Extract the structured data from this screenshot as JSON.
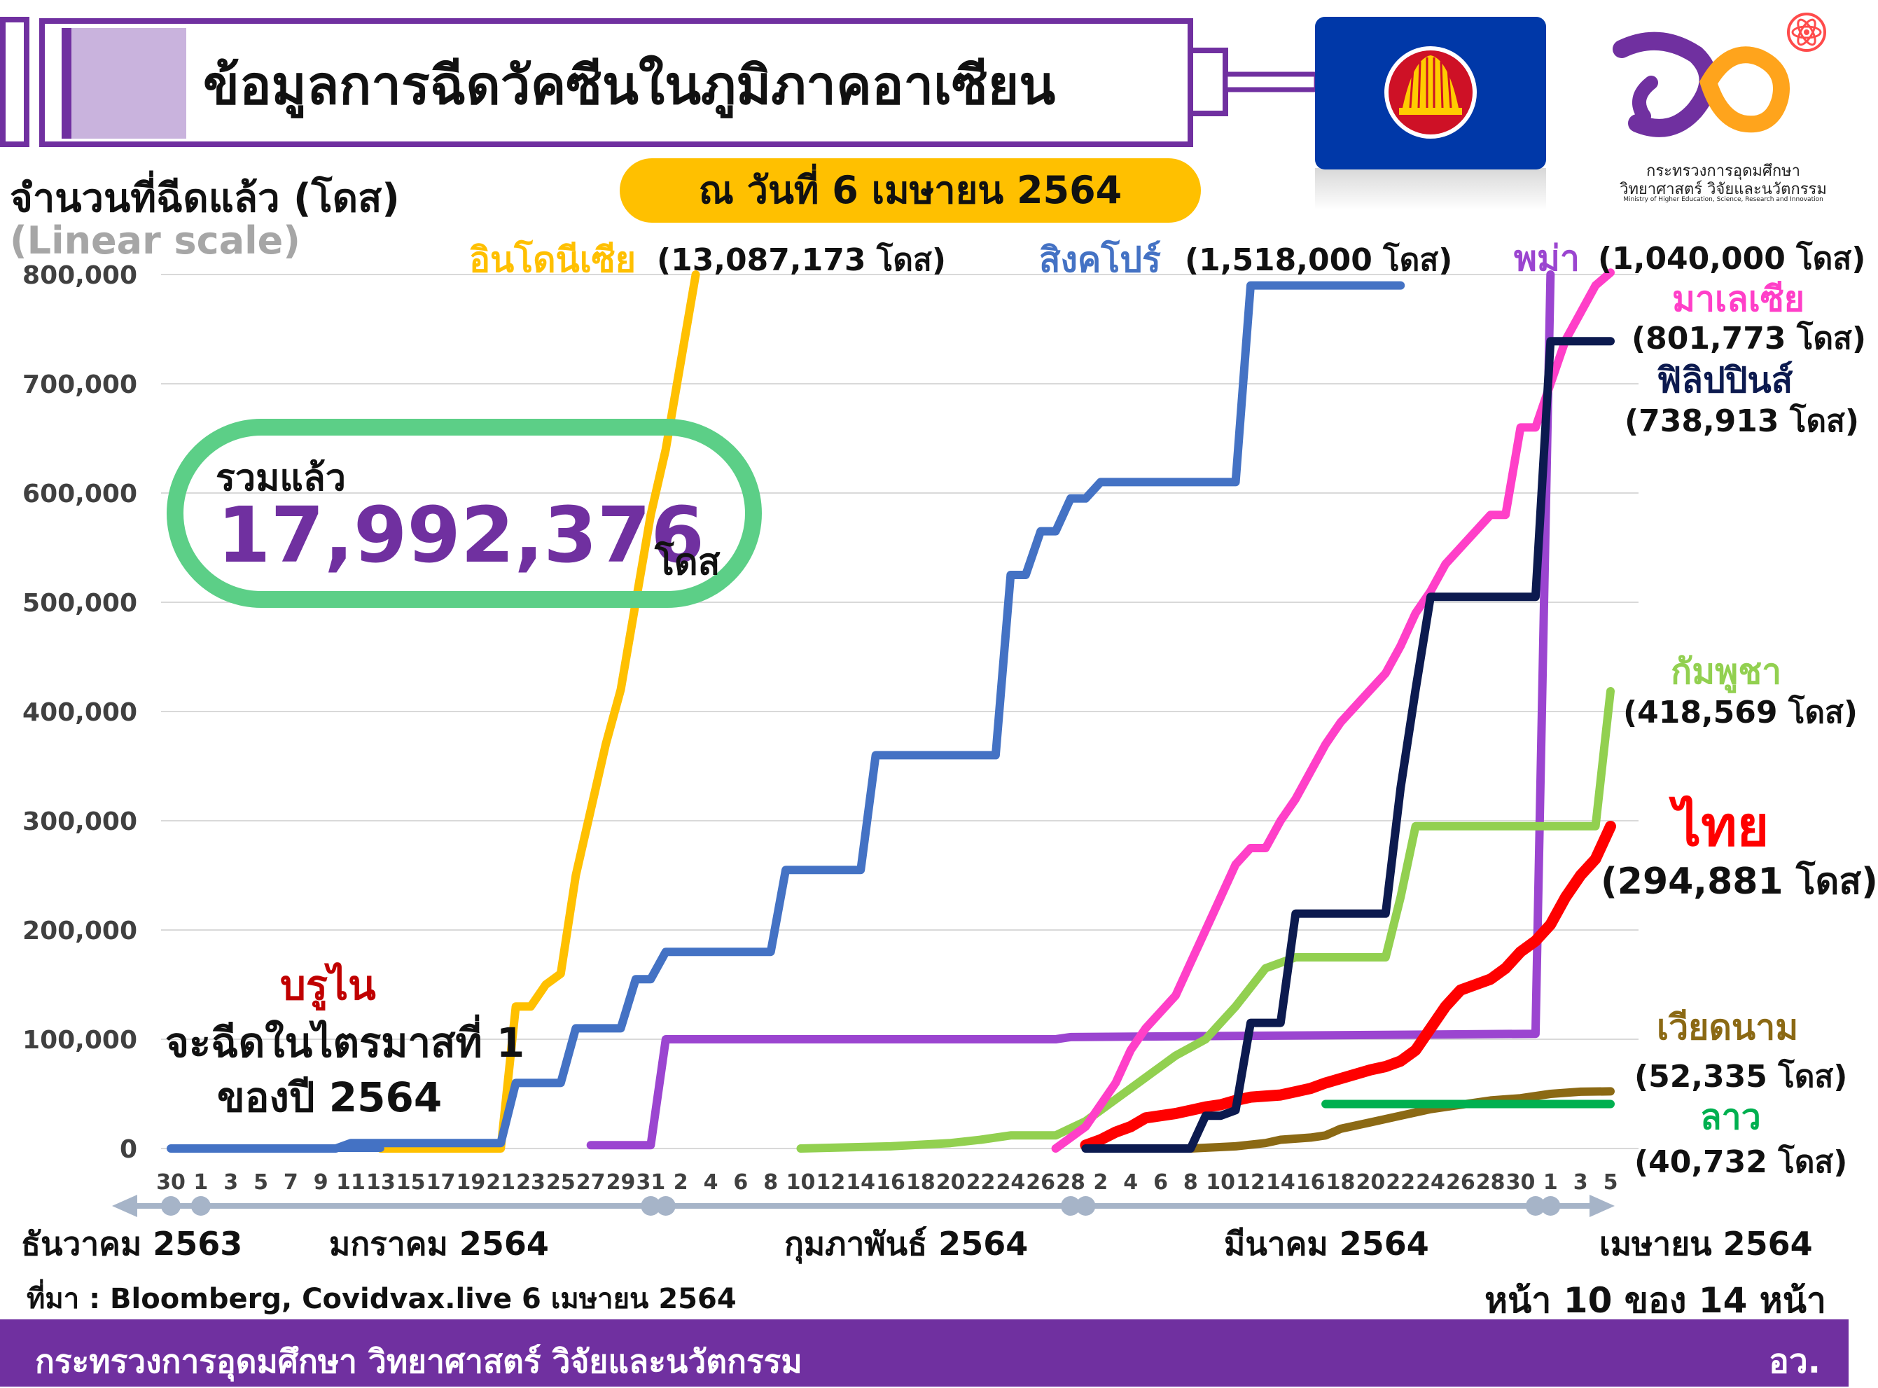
{
  "header": {
    "title": "ข้อมูลการฉีดวัคซีนในภูมิภาคอาเซียน",
    "date": "ณ วันที่ 6 เมษายน 2564"
  },
  "logo": {
    "caption_line1": "กระทรวงการอุดมศึกษา",
    "caption_line2": "วิทยาศาสตร์ วิจัยและนวัตกรรม",
    "caption_line3": "Ministry of Higher Education, Science, Research and Innovation"
  },
  "total": {
    "label": "รวมแล้ว",
    "value": "17,992,376",
    "unit": "โดส"
  },
  "brunei": {
    "name": "บรูไน",
    "note_line1": "จะฉีดในไตรมาสที่ 1",
    "note_line2": "ของปี 2564"
  },
  "labels": {
    "indonesia_name": "อินโดนีเซีย",
    "indonesia_doses": "(13,087,173 โดส)",
    "singapore_name": "สิงคโปร์",
    "singapore_doses": "(1,518,000 โดส)",
    "myanmar_name": "พม่า",
    "myanmar_doses": "(1,040,000 โดส)",
    "malaysia_name": "มาเลเซีย",
    "malaysia_doses": "(801,773 โดส)",
    "philippines_name": "ฟิลิปปินส์",
    "philippines_doses": "(738,913 โดส)",
    "cambodia_name": "กัมพูชา",
    "cambodia_doses": "(418,569 โดส)",
    "thailand_name": "ไทย",
    "thailand_doses": "(294,881 โดส)",
    "vietnam_name": "เวียดนาม",
    "vietnam_doses": "(52,335 โดส)",
    "laos_name": "ลาว",
    "laos_doses": "(40,732 โดส)"
  },
  "footer": {
    "source": "ที่มา : Bloomberg, Covidvax.live 6 เมษายน 2564",
    "page": "หน้า 10 ของ 14 หน้า",
    "ministry": "กระทรวงการอุดมศึกษา วิทยาศาสตร์ วิจัยและนวัตกรรม",
    "abbr": "อว."
  },
  "colors": {
    "indonesia": "#ffc000",
    "singapore": "#4472c4",
    "myanmar": "#9b45d0",
    "malaysia": "#ff3fc8",
    "philippines": "#0c1a4f",
    "cambodia": "#92d050",
    "thailand": "#ff0000",
    "vietnam": "#8b6914",
    "laos": "#00b050",
    "accent": "#7030a0"
  },
  "chart_data": {
    "type": "line",
    "ylabel": "จำนวนที่ฉีดแล้ว (โดส)",
    "yscale_note": "(Linear scale)",
    "ylim": [
      0,
      800000
    ],
    "yticks": [
      0,
      100000,
      200000,
      300000,
      400000,
      500000,
      600000,
      700000,
      800000
    ],
    "ytick_labels": [
      "0",
      "100,000",
      "200,000",
      "300,000",
      "400,000",
      "500,000",
      "600,000",
      "700,000",
      "800,000"
    ],
    "grid": true,
    "x_ticks": [
      {
        "date": "2020-12-30",
        "label": "30"
      },
      {
        "date": "2021-01-01",
        "label": "1"
      },
      {
        "date": "2021-01-03",
        "label": "3"
      },
      {
        "date": "2021-01-05",
        "label": "5"
      },
      {
        "date": "2021-01-07",
        "label": "7"
      },
      {
        "date": "2021-01-09",
        "label": "9"
      },
      {
        "date": "2021-01-11",
        "label": "11"
      },
      {
        "date": "2021-01-13",
        "label": "13"
      },
      {
        "date": "2021-01-15",
        "label": "15"
      },
      {
        "date": "2021-01-17",
        "label": "17"
      },
      {
        "date": "2021-01-19",
        "label": "19"
      },
      {
        "date": "2021-01-21",
        "label": "21"
      },
      {
        "date": "2021-01-23",
        "label": "23"
      },
      {
        "date": "2021-01-25",
        "label": "25"
      },
      {
        "date": "2021-01-27",
        "label": "27"
      },
      {
        "date": "2021-01-29",
        "label": "29"
      },
      {
        "date": "2021-01-31",
        "label": "31"
      },
      {
        "date": "2021-02-02",
        "label": "2"
      },
      {
        "date": "2021-02-04",
        "label": "4"
      },
      {
        "date": "2021-02-06",
        "label": "6"
      },
      {
        "date": "2021-02-08",
        "label": "8"
      },
      {
        "date": "2021-02-10",
        "label": "10"
      },
      {
        "date": "2021-02-12",
        "label": "12"
      },
      {
        "date": "2021-02-14",
        "label": "14"
      },
      {
        "date": "2021-02-16",
        "label": "16"
      },
      {
        "date": "2021-02-18",
        "label": "18"
      },
      {
        "date": "2021-02-20",
        "label": "20"
      },
      {
        "date": "2021-02-22",
        "label": "22"
      },
      {
        "date": "2021-02-24",
        "label": "24"
      },
      {
        "date": "2021-02-26",
        "label": "26"
      },
      {
        "date": "2021-02-28",
        "label": "28"
      },
      {
        "date": "2021-03-02",
        "label": "2"
      },
      {
        "date": "2021-03-04",
        "label": "4"
      },
      {
        "date": "2021-03-06",
        "label": "6"
      },
      {
        "date": "2021-03-08",
        "label": "8"
      },
      {
        "date": "2021-03-10",
        "label": "10"
      },
      {
        "date": "2021-03-12",
        "label": "12"
      },
      {
        "date": "2021-03-14",
        "label": "14"
      },
      {
        "date": "2021-03-16",
        "label": "16"
      },
      {
        "date": "2021-03-18",
        "label": "18"
      },
      {
        "date": "2021-03-20",
        "label": "20"
      },
      {
        "date": "2021-03-22",
        "label": "22"
      },
      {
        "date": "2021-03-24",
        "label": "24"
      },
      {
        "date": "2021-03-26",
        "label": "26"
      },
      {
        "date": "2021-03-28",
        "label": "28"
      },
      {
        "date": "2021-03-30",
        "label": "30"
      },
      {
        "date": "2021-04-01",
        "label": "1"
      },
      {
        "date": "2021-04-03",
        "label": "3"
      },
      {
        "date": "2021-04-05",
        "label": "5"
      }
    ],
    "months": [
      {
        "label": "ธันวาคม 2563"
      },
      {
        "label": "มกราคม 2564"
      },
      {
        "label": "กุมภาพันธ์ 2564"
      },
      {
        "label": "มีนาคม 2564"
      },
      {
        "label": "เมษายน 2564"
      }
    ],
    "series": [
      {
        "key": "indonesia",
        "name": "อินโดนีเซีย",
        "x": [
          "2021-01-13",
          "2021-01-21",
          "2021-01-22",
          "2021-01-23",
          "2021-01-24",
          "2021-01-25",
          "2021-01-26",
          "2021-01-27",
          "2021-01-28",
          "2021-01-29",
          "2021-01-30",
          "2021-01-31",
          "2021-02-01",
          "2021-02-02",
          "2021-02-03"
        ],
        "y": [
          0,
          0,
          130000,
          130000,
          150000,
          160000,
          250000,
          310000,
          370000,
          420000,
          500000,
          580000,
          640000,
          720000,
          800000
        ]
      },
      {
        "key": "singapore",
        "name": "สิงคโปร์",
        "x": [
          "2020-12-30",
          "2021-01-10",
          "2021-01-11",
          "2021-01-21",
          "2021-01-22",
          "2021-01-25",
          "2021-01-26",
          "2021-01-29",
          "2021-01-30",
          "2021-01-31",
          "2021-02-01",
          "2021-02-08",
          "2021-02-09",
          "2021-02-14",
          "2021-02-15",
          "2021-02-23",
          "2021-02-24",
          "2021-02-25",
          "2021-02-26",
          "2021-02-27",
          "2021-02-28",
          "2021-03-01",
          "2021-03-02",
          "2021-03-03",
          "2021-03-04",
          "2021-03-05",
          "2021-03-06",
          "2021-03-11",
          "2021-03-12",
          "2021-03-16",
          "2021-03-17",
          "2021-03-22"
        ],
        "y": [
          0,
          0,
          5000,
          5000,
          60000,
          60000,
          110000,
          110000,
          155000,
          155000,
          180000,
          180000,
          255000,
          255000,
          360000,
          360000,
          525000,
          525000,
          565000,
          565000,
          595000,
          595000,
          610000,
          610000,
          610000,
          610000,
          610000,
          610000,
          790000,
          790000,
          790000,
          790000
        ]
      },
      {
        "key": "myanmar",
        "name": "พม่า",
        "x": [
          "2021-01-27",
          "2021-01-31",
          "2021-02-01",
          "2021-02-27",
          "2021-02-28",
          "2021-03-31",
          "2021-04-01"
        ],
        "y": [
          3000,
          3000,
          100000,
          100000,
          102000,
          105000,
          800000
        ]
      },
      {
        "key": "malaysia",
        "name": "มาเลเซีย",
        "x": [
          "2021-02-27",
          "2021-02-28",
          "2021-03-01",
          "2021-03-02",
          "2021-03-03",
          "2021-03-04",
          "2021-03-05",
          "2021-03-06",
          "2021-03-07",
          "2021-03-08",
          "2021-03-09",
          "2021-03-10",
          "2021-03-11",
          "2021-03-12",
          "2021-03-13",
          "2021-03-14",
          "2021-03-15",
          "2021-03-16",
          "2021-03-17",
          "2021-03-18",
          "2021-03-19",
          "2021-03-20",
          "2021-03-21",
          "2021-03-22",
          "2021-03-23",
          "2021-03-24",
          "2021-03-25",
          "2021-03-26",
          "2021-03-27",
          "2021-03-28",
          "2021-03-29",
          "2021-03-30",
          "2021-03-31",
          "2021-04-01",
          "2021-04-02",
          "2021-04-03",
          "2021-04-04",
          "2021-04-05"
        ],
        "y": [
          0,
          10000,
          20000,
          40000,
          60000,
          90000,
          110000,
          125000,
          140000,
          170000,
          200000,
          230000,
          260000,
          275000,
          275000,
          300000,
          320000,
          345000,
          370000,
          390000,
          405000,
          420000,
          435000,
          460000,
          490000,
          510000,
          535000,
          550000,
          565000,
          580000,
          580000,
          660000,
          660000,
          700000,
          740000,
          765000,
          790000,
          801773
        ]
      },
      {
        "key": "philippines",
        "name": "ฟิลิปปินส์",
        "x": [
          "2021-03-01",
          "2021-03-08",
          "2021-03-09",
          "2021-03-10",
          "2021-03-11",
          "2021-03-12",
          "2021-03-13",
          "2021-03-14",
          "2021-03-15",
          "2021-03-16",
          "2021-03-21",
          "2021-03-22",
          "2021-03-23",
          "2021-03-24",
          "2021-03-30",
          "2021-03-31",
          "2021-04-01",
          "2021-04-05"
        ],
        "y": [
          0,
          0,
          30000,
          30000,
          35000,
          115000,
          115000,
          115000,
          215000,
          215000,
          215000,
          330000,
          420000,
          505000,
          505000,
          505000,
          738913,
          738913
        ]
      },
      {
        "key": "cambodia",
        "name": "กัมพูชา",
        "x": [
          "2021-02-10",
          "2021-02-16",
          "2021-02-20",
          "2021-02-22",
          "2021-02-24",
          "2021-02-27",
          "2021-03-01",
          "2021-03-03",
          "2021-03-05",
          "2021-03-07",
          "2021-03-09",
          "2021-03-11",
          "2021-03-13",
          "2021-03-15",
          "2021-03-21",
          "2021-03-22",
          "2021-03-23",
          "2021-03-29",
          "2021-04-04",
          "2021-04-05"
        ],
        "y": [
          0,
          2000,
          5000,
          8000,
          12000,
          12000,
          25000,
          45000,
          65000,
          85000,
          100000,
          130000,
          165000,
          175000,
          175000,
          230000,
          295000,
          295000,
          295000,
          418569
        ]
      },
      {
        "key": "thailand",
        "name": "ไทย",
        "x": [
          "2021-03-01",
          "2021-03-02",
          "2021-03-03",
          "2021-03-04",
          "2021-03-05",
          "2021-03-06",
          "2021-03-07",
          "2021-03-08",
          "2021-03-09",
          "2021-03-10",
          "2021-03-11",
          "2021-03-12",
          "2021-03-13",
          "2021-03-14",
          "2021-03-15",
          "2021-03-16",
          "2021-03-17",
          "2021-03-18",
          "2021-03-19",
          "2021-03-20",
          "2021-03-21",
          "2021-03-22",
          "2021-03-23",
          "2021-03-24",
          "2021-03-25",
          "2021-03-26",
          "2021-03-27",
          "2021-03-28",
          "2021-03-29",
          "2021-03-30",
          "2021-03-31",
          "2021-04-01",
          "2021-04-02",
          "2021-04-03",
          "2021-04-04",
          "2021-04-05"
        ],
        "y": [
          3000,
          8000,
          15000,
          20000,
          28000,
          30000,
          32000,
          35000,
          38000,
          40000,
          44000,
          47000,
          48000,
          49000,
          52000,
          55000,
          60000,
          64000,
          68000,
          72000,
          75000,
          80000,
          90000,
          110000,
          130000,
          145000,
          150000,
          155000,
          165000,
          180000,
          190000,
          205000,
          230000,
          250000,
          265000,
          294881
        ]
      },
      {
        "key": "vietnam",
        "name": "เวียดนาม",
        "x": [
          "2021-03-08",
          "2021-03-11",
          "2021-03-13",
          "2021-03-14",
          "2021-03-16",
          "2021-03-17",
          "2021-03-18",
          "2021-03-20",
          "2021-03-22",
          "2021-03-24",
          "2021-03-26",
          "2021-03-28",
          "2021-03-30",
          "2021-04-01",
          "2021-04-03",
          "2021-04-05"
        ],
        "y": [
          0,
          2000,
          5000,
          8000,
          10000,
          12000,
          18000,
          24000,
          30000,
          36000,
          40000,
          44000,
          46000,
          50000,
          52000,
          52335
        ]
      },
      {
        "key": "laos",
        "name": "ลาว",
        "x": [
          "2021-03-17",
          "2021-04-05"
        ],
        "y": [
          40732,
          40732
        ]
      }
    ]
  }
}
